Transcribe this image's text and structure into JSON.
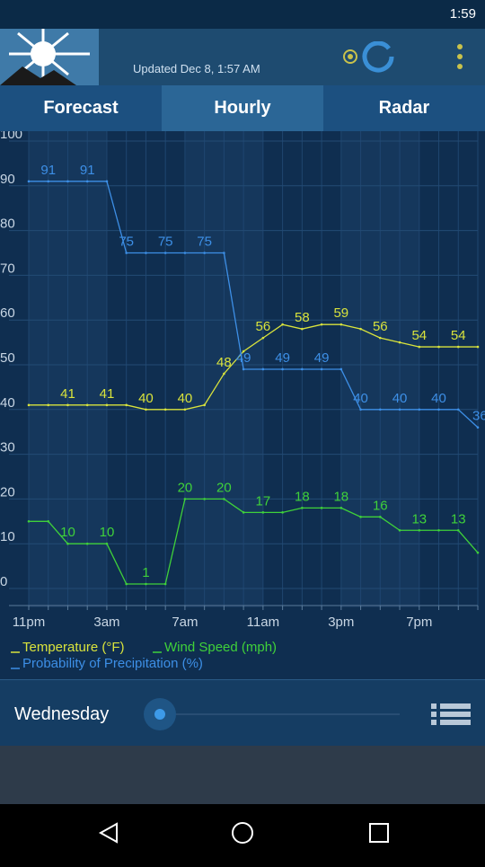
{
  "status_bar": {
    "time": "1:59"
  },
  "header": {
    "updated": "Updated Dec 8, 1:57 AM"
  },
  "tabs": [
    "Forecast",
    "Hourly",
    "Radar"
  ],
  "chart_data": {
    "type": "line",
    "categories": [
      "11pm",
      null,
      null,
      null,
      "3am",
      null,
      null,
      null,
      "7am",
      null,
      null,
      null,
      "11am",
      null,
      null,
      null,
      "3pm",
      null,
      null,
      null,
      "7pm",
      null,
      null,
      null
    ],
    "series": [
      {
        "name": "Temperature (°F)",
        "color": "#d9e33c",
        "values": [
          41,
          41,
          41,
          41,
          41,
          41,
          40,
          40,
          40,
          41,
          48,
          53,
          56,
          59,
          58,
          59,
          59,
          58,
          56,
          55,
          54,
          54,
          54,
          54
        ]
      },
      {
        "name": "Wind Speed (mph)",
        "color": "#3fd13a",
        "values": [
          15,
          15,
          10,
          10,
          10,
          1,
          1,
          1,
          20,
          20,
          20,
          17,
          17,
          17,
          18,
          18,
          18,
          16,
          16,
          13,
          13,
          13,
          13,
          8
        ]
      },
      {
        "name": "Probability of Precipitation (%)",
        "color": "#3d8fe6",
        "values": [
          91,
          91,
          91,
          91,
          91,
          75,
          75,
          75,
          75,
          75,
          75,
          49,
          49,
          49,
          49,
          49,
          49,
          40,
          40,
          40,
          40,
          40,
          40,
          36
        ]
      }
    ],
    "ylim": [
      0,
      100
    ],
    "yticks": [
      0,
      10,
      20,
      30,
      40,
      50,
      60,
      70,
      80,
      90,
      100
    ],
    "grid": true
  },
  "day": "Wednesday"
}
